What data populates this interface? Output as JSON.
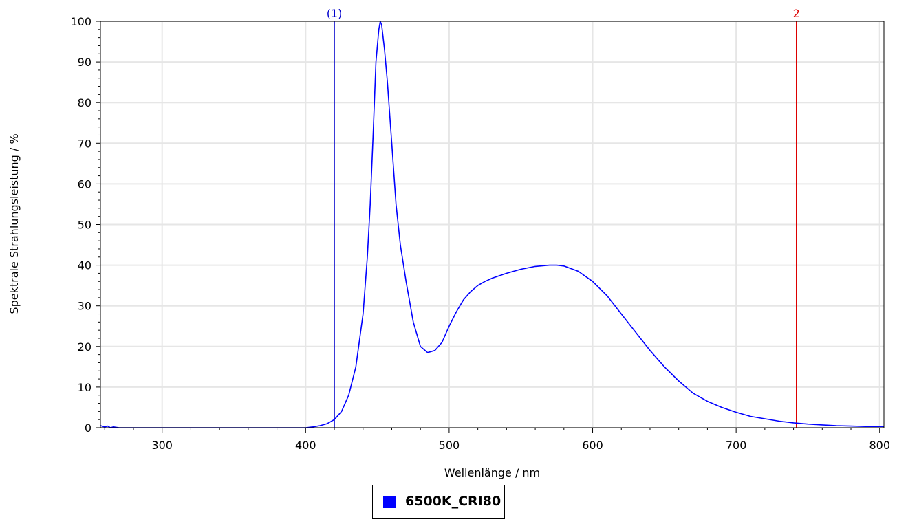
{
  "chart_data": {
    "type": "line",
    "xlabel": "Wellenlänge / nm",
    "ylabel": "Spektrale Strahlungsleistung / %",
    "xlim": [
      257,
      803
    ],
    "ylim": [
      0,
      100
    ],
    "x_ticks": [
      300,
      400,
      500,
      600,
      700,
      800
    ],
    "y_ticks": [
      0,
      10,
      20,
      30,
      40,
      50,
      60,
      70,
      80,
      90,
      100
    ],
    "x_tick_labels": [
      "300",
      "400",
      "500",
      "600",
      "700",
      "800"
    ],
    "y_tick_labels": [
      "0",
      "10",
      "20",
      "30",
      "40",
      "50",
      "60",
      "70",
      "80",
      "90",
      "100"
    ],
    "grid": true,
    "legend_position": "bottom-center",
    "series": [
      {
        "name": "6500K_CRI80",
        "color": "#0000ff",
        "x": [
          257,
          260,
          262,
          264,
          266,
          270,
          300,
          350,
          400,
          405,
          410,
          415,
          420,
          425,
          430,
          435,
          440,
          443,
          445,
          447,
          449,
          451,
          452,
          453,
          455,
          457,
          460,
          463,
          466,
          470,
          475,
          480,
          485,
          490,
          495,
          500,
          505,
          510,
          515,
          520,
          525,
          530,
          540,
          550,
          560,
          570,
          575,
          580,
          590,
          600,
          610,
          620,
          630,
          640,
          650,
          660,
          670,
          680,
          690,
          700,
          710,
          720,
          730,
          740,
          750,
          760,
          770,
          780,
          790,
          800,
          803
        ],
        "y": [
          0.5,
          0.2,
          0.4,
          0.0,
          0.2,
          0.0,
          0.0,
          0.0,
          0.0,
          0.2,
          0.5,
          1.0,
          2.0,
          4.0,
          8.0,
          15.0,
          28.0,
          42.0,
          55.0,
          72.0,
          90.0,
          98.0,
          100.0,
          99.0,
          93.0,
          85.0,
          70.0,
          55.0,
          45.0,
          36.0,
          26.0,
          20.0,
          18.5,
          19.0,
          21.0,
          25.0,
          28.5,
          31.5,
          33.5,
          35.0,
          36.0,
          36.8,
          38.0,
          39.0,
          39.7,
          40.0,
          40.0,
          39.8,
          38.5,
          36.0,
          32.5,
          28.0,
          23.5,
          19.0,
          15.0,
          11.5,
          8.5,
          6.5,
          5.0,
          3.8,
          2.8,
          2.2,
          1.6,
          1.2,
          0.9,
          0.7,
          0.5,
          0.4,
          0.3,
          0.3,
          0.3
        ]
      }
    ],
    "markers": [
      {
        "label": "(1)",
        "x": 420,
        "color": "#0000cc"
      },
      {
        "label": "2",
        "x": 742,
        "color": "#dd0000"
      }
    ]
  },
  "legend": {
    "label": "6500K_CRI80",
    "color": "#0000ff"
  }
}
